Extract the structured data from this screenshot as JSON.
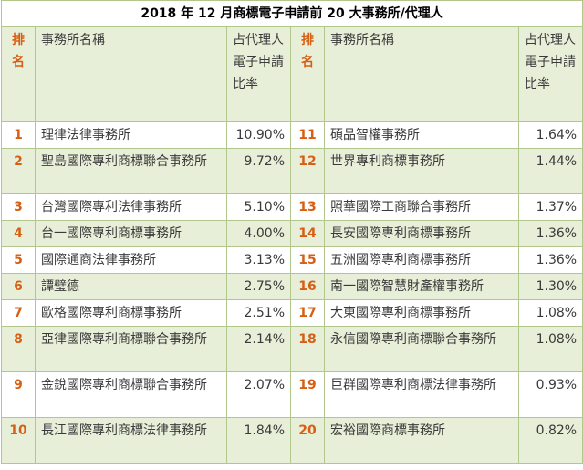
{
  "title": "2018 年 12 月商標電子申請前 20 大事務所/代理人",
  "headers": {
    "rank": "排名",
    "firm": "事務所名稱",
    "share": "占代理人電子申請比率"
  },
  "rows": [
    {
      "left": {
        "rank": "1",
        "firm": "理律法律事務所",
        "share": "10.90%"
      },
      "right": {
        "rank": "11",
        "firm": "碩品智權事務所",
        "share": "1.64%"
      }
    },
    {
      "left": {
        "rank": "2",
        "firm": "聖島國際專利商標聯合事務所",
        "share": "9.72%"
      },
      "right": {
        "rank": "12",
        "firm": "世界專利商標事務所",
        "share": "1.44%"
      }
    },
    {
      "left": {
        "rank": "3",
        "firm": "台灣國際專利法律事務所",
        "share": "5.10%"
      },
      "right": {
        "rank": "13",
        "firm": "照華國際工商聯合事務所",
        "share": "1.37%"
      }
    },
    {
      "left": {
        "rank": "4",
        "firm": "台一國際專利商標事務所",
        "share": "4.00%"
      },
      "right": {
        "rank": "14",
        "firm": "長安國際專利商標事務所",
        "share": "1.36%"
      }
    },
    {
      "left": {
        "rank": "5",
        "firm": "國際通商法律事務所",
        "share": "3.13%"
      },
      "right": {
        "rank": "15",
        "firm": "五洲國際專利商標事務所",
        "share": "1.36%"
      }
    },
    {
      "left": {
        "rank": "6",
        "firm": "譚璧德",
        "share": "2.75%"
      },
      "right": {
        "rank": "16",
        "firm": "南一國際智慧財產權事務所",
        "share": "1.30%"
      }
    },
    {
      "left": {
        "rank": "7",
        "firm": "歐格國際專利商標事務所",
        "share": "2.51%"
      },
      "right": {
        "rank": "17",
        "firm": "大東國際專利商標事務所",
        "share": "1.08%"
      }
    },
    {
      "left": {
        "rank": "8",
        "firm": "亞律國際專利商標聯合事務所",
        "share": "2.14%"
      },
      "right": {
        "rank": "18",
        "firm": "永信國際專利商標聯合事務所",
        "share": "1.08%"
      }
    },
    {
      "left": {
        "rank": "9",
        "firm": "金銳國際專利商標聯合事務所",
        "share": "2.07%"
      },
      "right": {
        "rank": "19",
        "firm": "巨群國際專利商標法律事務所",
        "share": "0.93%"
      }
    },
    {
      "left": {
        "rank": "10",
        "firm": "長江國際專利商標法律事務所",
        "share": "1.84%"
      },
      "right": {
        "rank": "20",
        "firm": "宏裕國際商標事務所",
        "share": "0.82%"
      }
    }
  ]
}
